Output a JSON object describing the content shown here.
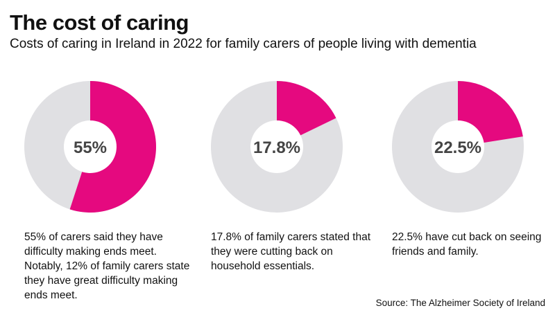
{
  "header": {
    "title": "The cost of caring",
    "subtitle": "Costs of caring in Ireland in 2022 for family carers of people living with dementia"
  },
  "chart_data": {
    "type": "pie",
    "variant": "donut",
    "title": "The cost of caring",
    "subtitle": "Costs of caring in Ireland in 2022 for family carers of people living with dementia",
    "charts": [
      {
        "value": 55,
        "label": "55%",
        "caption": "55% of carers said they have difficulty making ends meet. Notably, 12% of family carers state they have great difficulty making ends meet."
      },
      {
        "value": 17.8,
        "label": "17.8%",
        "caption": "17.8% of family carers stated that they were cutting back on household essentials."
      },
      {
        "value": 22.5,
        "label": "22.5%",
        "caption": "22.5% have cut back on seeing friends and family."
      }
    ],
    "colors": {
      "highlight": "#e5097f",
      "remainder": "#e0e0e3",
      "center_text": "#444444"
    }
  },
  "footer": {
    "source": "Source: The Alzheimer Society of Ireland"
  }
}
